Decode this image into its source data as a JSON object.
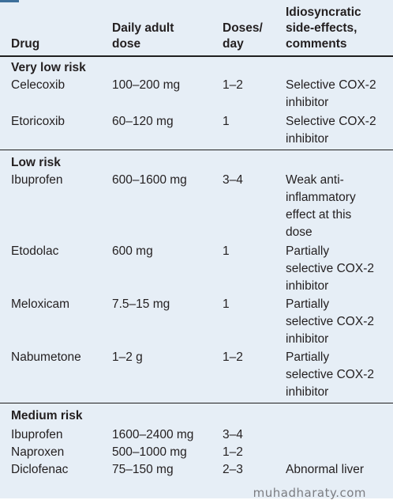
{
  "headers": {
    "drug": "Drug",
    "dose": "Daily adult\ndose",
    "doses": "Doses/\nday",
    "comments": "Idiosyncratic\nside-effects,\ncomments"
  },
  "sections": [
    {
      "title": "Very low risk",
      "rows": [
        {
          "drug": "Celecoxib",
          "dose": "100–200 mg",
          "doses": "1–2",
          "comment": "Selective COX-2\ninhibitor"
        },
        {
          "drug": "Etoricoxib",
          "dose": "60–120 mg",
          "doses": "1",
          "comment": "Selective COX-2\ninhibitor"
        }
      ]
    },
    {
      "title": "Low risk",
      "rows": [
        {
          "drug": "Ibuprofen",
          "dose": "600–1600 mg",
          "doses": "3–4",
          "comment": "Weak anti-\ninflammatory\neffect at this\ndose"
        },
        {
          "drug": "Etodolac",
          "dose": "600 mg",
          "doses": "1",
          "comment": "Partially\nselective COX-2\ninhibitor"
        },
        {
          "drug": "Meloxicam",
          "dose": "7.5–15 mg",
          "doses": "1",
          "comment": "Partially\nselective COX-2\ninhibitor"
        },
        {
          "drug": "Nabumetone",
          "dose": "1–2 g",
          "doses": "1–2",
          "comment": "Partially\nselective COX-2\ninhibitor"
        }
      ]
    },
    {
      "title": "Medium risk",
      "rows": [
        {
          "drug": "Ibuprofen",
          "dose": "1600–2400 mg",
          "doses": "3–4",
          "comment": ""
        },
        {
          "drug": "Naproxen",
          "dose": "500–1000 mg",
          "doses": "1–2",
          "comment": ""
        },
        {
          "drug": "Diclofenac",
          "dose": "75–150 mg",
          "doses": "2–3",
          "comment": "Abnormal liver"
        }
      ]
    }
  ],
  "watermark": "muhadharaty.com"
}
